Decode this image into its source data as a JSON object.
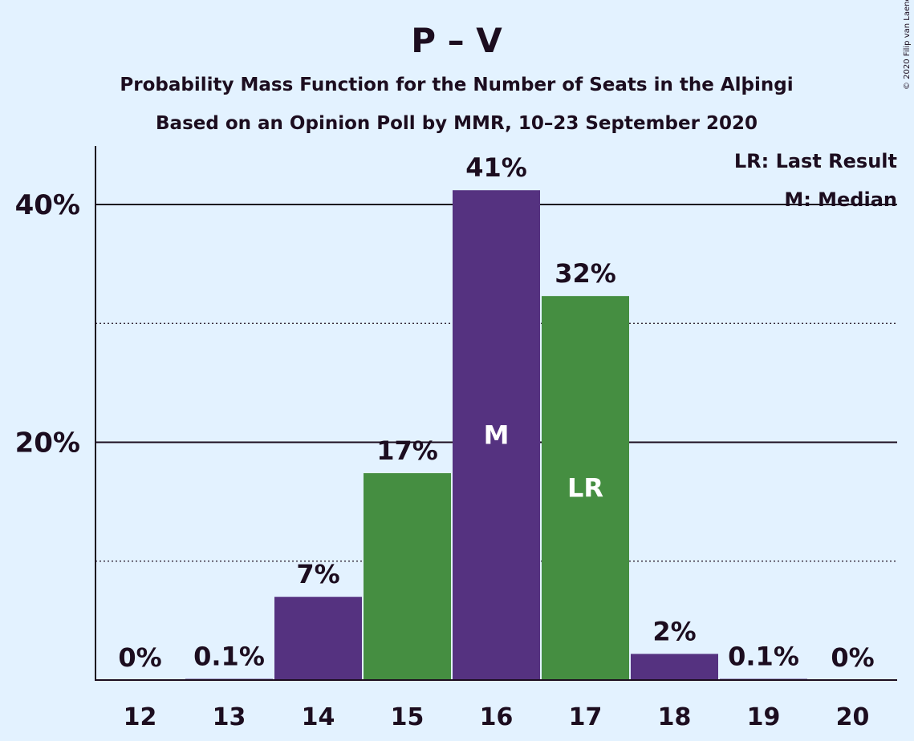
{
  "chart_data": {
    "type": "bar",
    "title": "P – V",
    "subtitle1": "Probability Mass Function for the Number of Seats in the Alþingi",
    "subtitle2": "Based on an Opinion Poll by MMR, 10–23 September 2020",
    "copyright": "© 2020 Filip van Laenen",
    "categories": [
      "12",
      "13",
      "14",
      "15",
      "16",
      "17",
      "18",
      "19",
      "20"
    ],
    "values": [
      0,
      0.1,
      7,
      17.4,
      41.2,
      32.3,
      2.2,
      0.1,
      0
    ],
    "value_labels": [
      "0%",
      "0.1%",
      "7%",
      "17%",
      "41%",
      "32%",
      "2%",
      "0.1%",
      "0%"
    ],
    "bar_colors": [
      "#553280",
      "#553280",
      "#553280",
      "#458e41",
      "#553280",
      "#458e41",
      "#553280",
      "#553280",
      "#553280"
    ],
    "markers": {
      "16": "M",
      "17": "LR"
    },
    "yticks": [
      {
        "value": 20,
        "label": "20%"
      },
      {
        "value": 40,
        "label": "40%"
      }
    ],
    "minor_gridlines": [
      10,
      30
    ],
    "ylim": [
      0,
      45
    ],
    "legend": [
      "LR: Last Result",
      "M: Median"
    ],
    "legend_position": "top-right",
    "colors": {
      "purple": "#553280",
      "green": "#458e41",
      "background": "#e3f2ff",
      "text": "#1c0d1f"
    }
  }
}
